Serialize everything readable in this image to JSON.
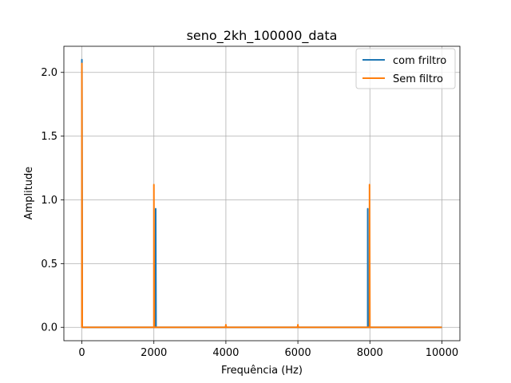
{
  "chart_data": {
    "type": "line",
    "title": "seno_2kh_100000_data",
    "xlabel": "Frequência (Hz)",
    "ylabel": "Amplitude",
    "xlim": [
      -500,
      10500
    ],
    "ylim": [
      -0.105,
      2.205
    ],
    "xticks": [
      0,
      2000,
      4000,
      6000,
      8000,
      10000
    ],
    "xtick_labels": [
      "0",
      "2000",
      "4000",
      "6000",
      "8000",
      "10000"
    ],
    "yticks": [
      0.0,
      0.5,
      1.0,
      1.5,
      2.0
    ],
    "ytick_labels": [
      "0.0",
      "0.5",
      "1.0",
      "1.5",
      "2.0"
    ],
    "grid": true,
    "legend_position": "top-right",
    "series": [
      {
        "name": "com friltro",
        "color": "#1f77b4",
        "x": [
          0,
          0,
          10,
          20,
          2040,
          2050,
          2050,
          2060,
          2070,
          7930,
          7940,
          7940,
          7950,
          7960,
          9980,
          9990,
          10000
        ],
        "y": [
          0.0,
          2.1,
          0.0,
          0.0,
          0.0,
          0.0,
          0.93,
          0.0,
          0.0,
          0.0,
          0.0,
          0.93,
          0.0,
          0.0,
          0.0,
          0.0,
          0.0
        ]
      },
      {
        "name": "Sem filtro",
        "color": "#ff7f0e",
        "x": [
          0,
          0,
          10,
          20,
          1990,
          2000,
          2000,
          2010,
          2020,
          3990,
          4000,
          4010,
          5990,
          6000,
          6010,
          7980,
          7990,
          7990,
          8000,
          8010,
          9980,
          9990,
          10000
        ],
        "y": [
          0.0,
          2.07,
          0.0,
          0.0,
          0.0,
          0.0,
          1.12,
          0.0,
          0.0,
          0.0,
          0.02,
          0.0,
          0.0,
          0.02,
          0.0,
          0.0,
          0.0,
          1.12,
          0.0,
          0.0,
          0.0,
          0.0,
          0.0
        ]
      }
    ]
  }
}
